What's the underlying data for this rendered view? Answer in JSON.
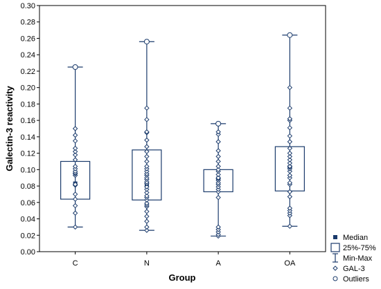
{
  "chart_data": {
    "type": "box",
    "xlabel": "Group",
    "ylabel": "Galectin-3 reactivity",
    "ylim": [
      0,
      0.3
    ],
    "yticks": [
      "0.00",
      "0.02",
      "0.04",
      "0.06",
      "0.08",
      "0.10",
      "0.12",
      "0.14",
      "0.16",
      "0.18",
      "0.20",
      "0.22",
      "0.24",
      "0.26",
      "0.28",
      "0.30"
    ],
    "categories": [
      "C",
      "N",
      "A",
      "OA"
    ],
    "boxes": [
      {
        "category": "C",
        "min": 0.03,
        "q1": 0.064,
        "median": 0.083,
        "q3": 0.11,
        "max": 0.225,
        "points": [
          0.03,
          0.047,
          0.056,
          0.064,
          0.07,
          0.081,
          0.082,
          0.093,
          0.095,
          0.096,
          0.098,
          0.101,
          0.104,
          0.112,
          0.118,
          0.122,
          0.126,
          0.135,
          0.142,
          0.15
        ],
        "outliers": [
          0.225
        ]
      },
      {
        "category": "N",
        "min": 0.026,
        "q1": 0.063,
        "median": 0.082,
        "q3": 0.124,
        "max": 0.256,
        "points": [
          0.026,
          0.03,
          0.037,
          0.043,
          0.049,
          0.055,
          0.057,
          0.059,
          0.063,
          0.066,
          0.068,
          0.072,
          0.076,
          0.079,
          0.083,
          0.085,
          0.088,
          0.09,
          0.093,
          0.095,
          0.098,
          0.101,
          0.104,
          0.11,
          0.116,
          0.122,
          0.128,
          0.136,
          0.145,
          0.146,
          0.161,
          0.175
        ],
        "outliers": [
          0.256
        ]
      },
      {
        "category": "A",
        "min": 0.019,
        "q1": 0.073,
        "median": 0.089,
        "q3": 0.1,
        "max": 0.156,
        "points": [
          0.019,
          0.021,
          0.024,
          0.027,
          0.03,
          0.066,
          0.073,
          0.076,
          0.079,
          0.082,
          0.084,
          0.087,
          0.089,
          0.09,
          0.094,
          0.098,
          0.1,
          0.104,
          0.11,
          0.116,
          0.123,
          0.134,
          0.143,
          0.146
        ],
        "outliers": [
          0.156
        ]
      },
      {
        "category": "OA",
        "min": 0.031,
        "q1": 0.074,
        "median": 0.103,
        "q3": 0.128,
        "max": 0.264,
        "points": [
          0.031,
          0.044,
          0.047,
          0.05,
          0.053,
          0.067,
          0.073,
          0.082,
          0.084,
          0.09,
          0.093,
          0.098,
          0.101,
          0.103,
          0.104,
          0.108,
          0.112,
          0.116,
          0.12,
          0.126,
          0.134,
          0.141,
          0.151,
          0.16,
          0.162,
          0.175,
          0.2
        ],
        "outliers": [
          0.264
        ]
      }
    ],
    "legend": {
      "placement": "bottom-right",
      "items": [
        "Median",
        "25%-75%",
        "Min-Max",
        "GAL-3",
        "Outliers"
      ]
    },
    "colors": {
      "stroke": "#1a3a6b",
      "median": "#1a3a6b",
      "axis": "#000000"
    },
    "grid": false
  }
}
